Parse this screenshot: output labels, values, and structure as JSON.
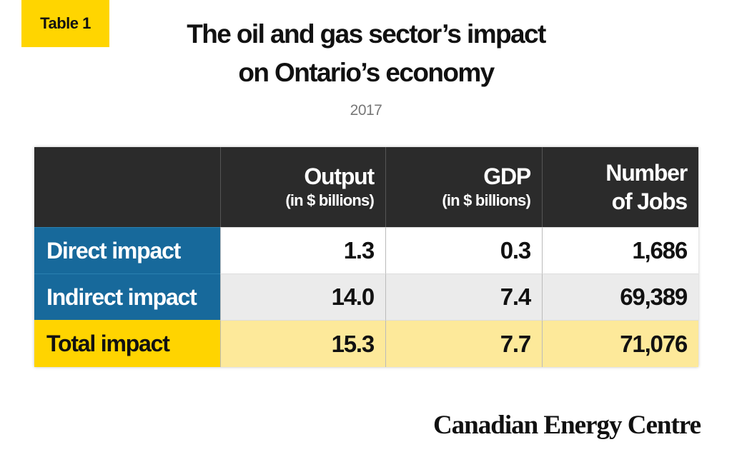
{
  "badge": "Table 1",
  "header": {
    "title_lines": [
      "The oil and gas sector’s impact",
      "on Ontario’s economy"
    ],
    "subtitle": "2017"
  },
  "table": {
    "columns": [
      [
        "Output",
        "(in $ billions)"
      ],
      [
        "GDP",
        "(in $ billions)"
      ],
      [
        "Number",
        "of Jobs"
      ]
    ],
    "rows": [
      [
        "Direct impact",
        "1.3",
        "0.3",
        "1,686"
      ],
      [
        "Indirect impact",
        "14.0",
        "7.4",
        "69,389"
      ],
      [
        "Total impact",
        "15.3",
        "7.7",
        "71,076"
      ]
    ]
  },
  "footer": {
    "source": "Canadian Energy Centre"
  }
}
